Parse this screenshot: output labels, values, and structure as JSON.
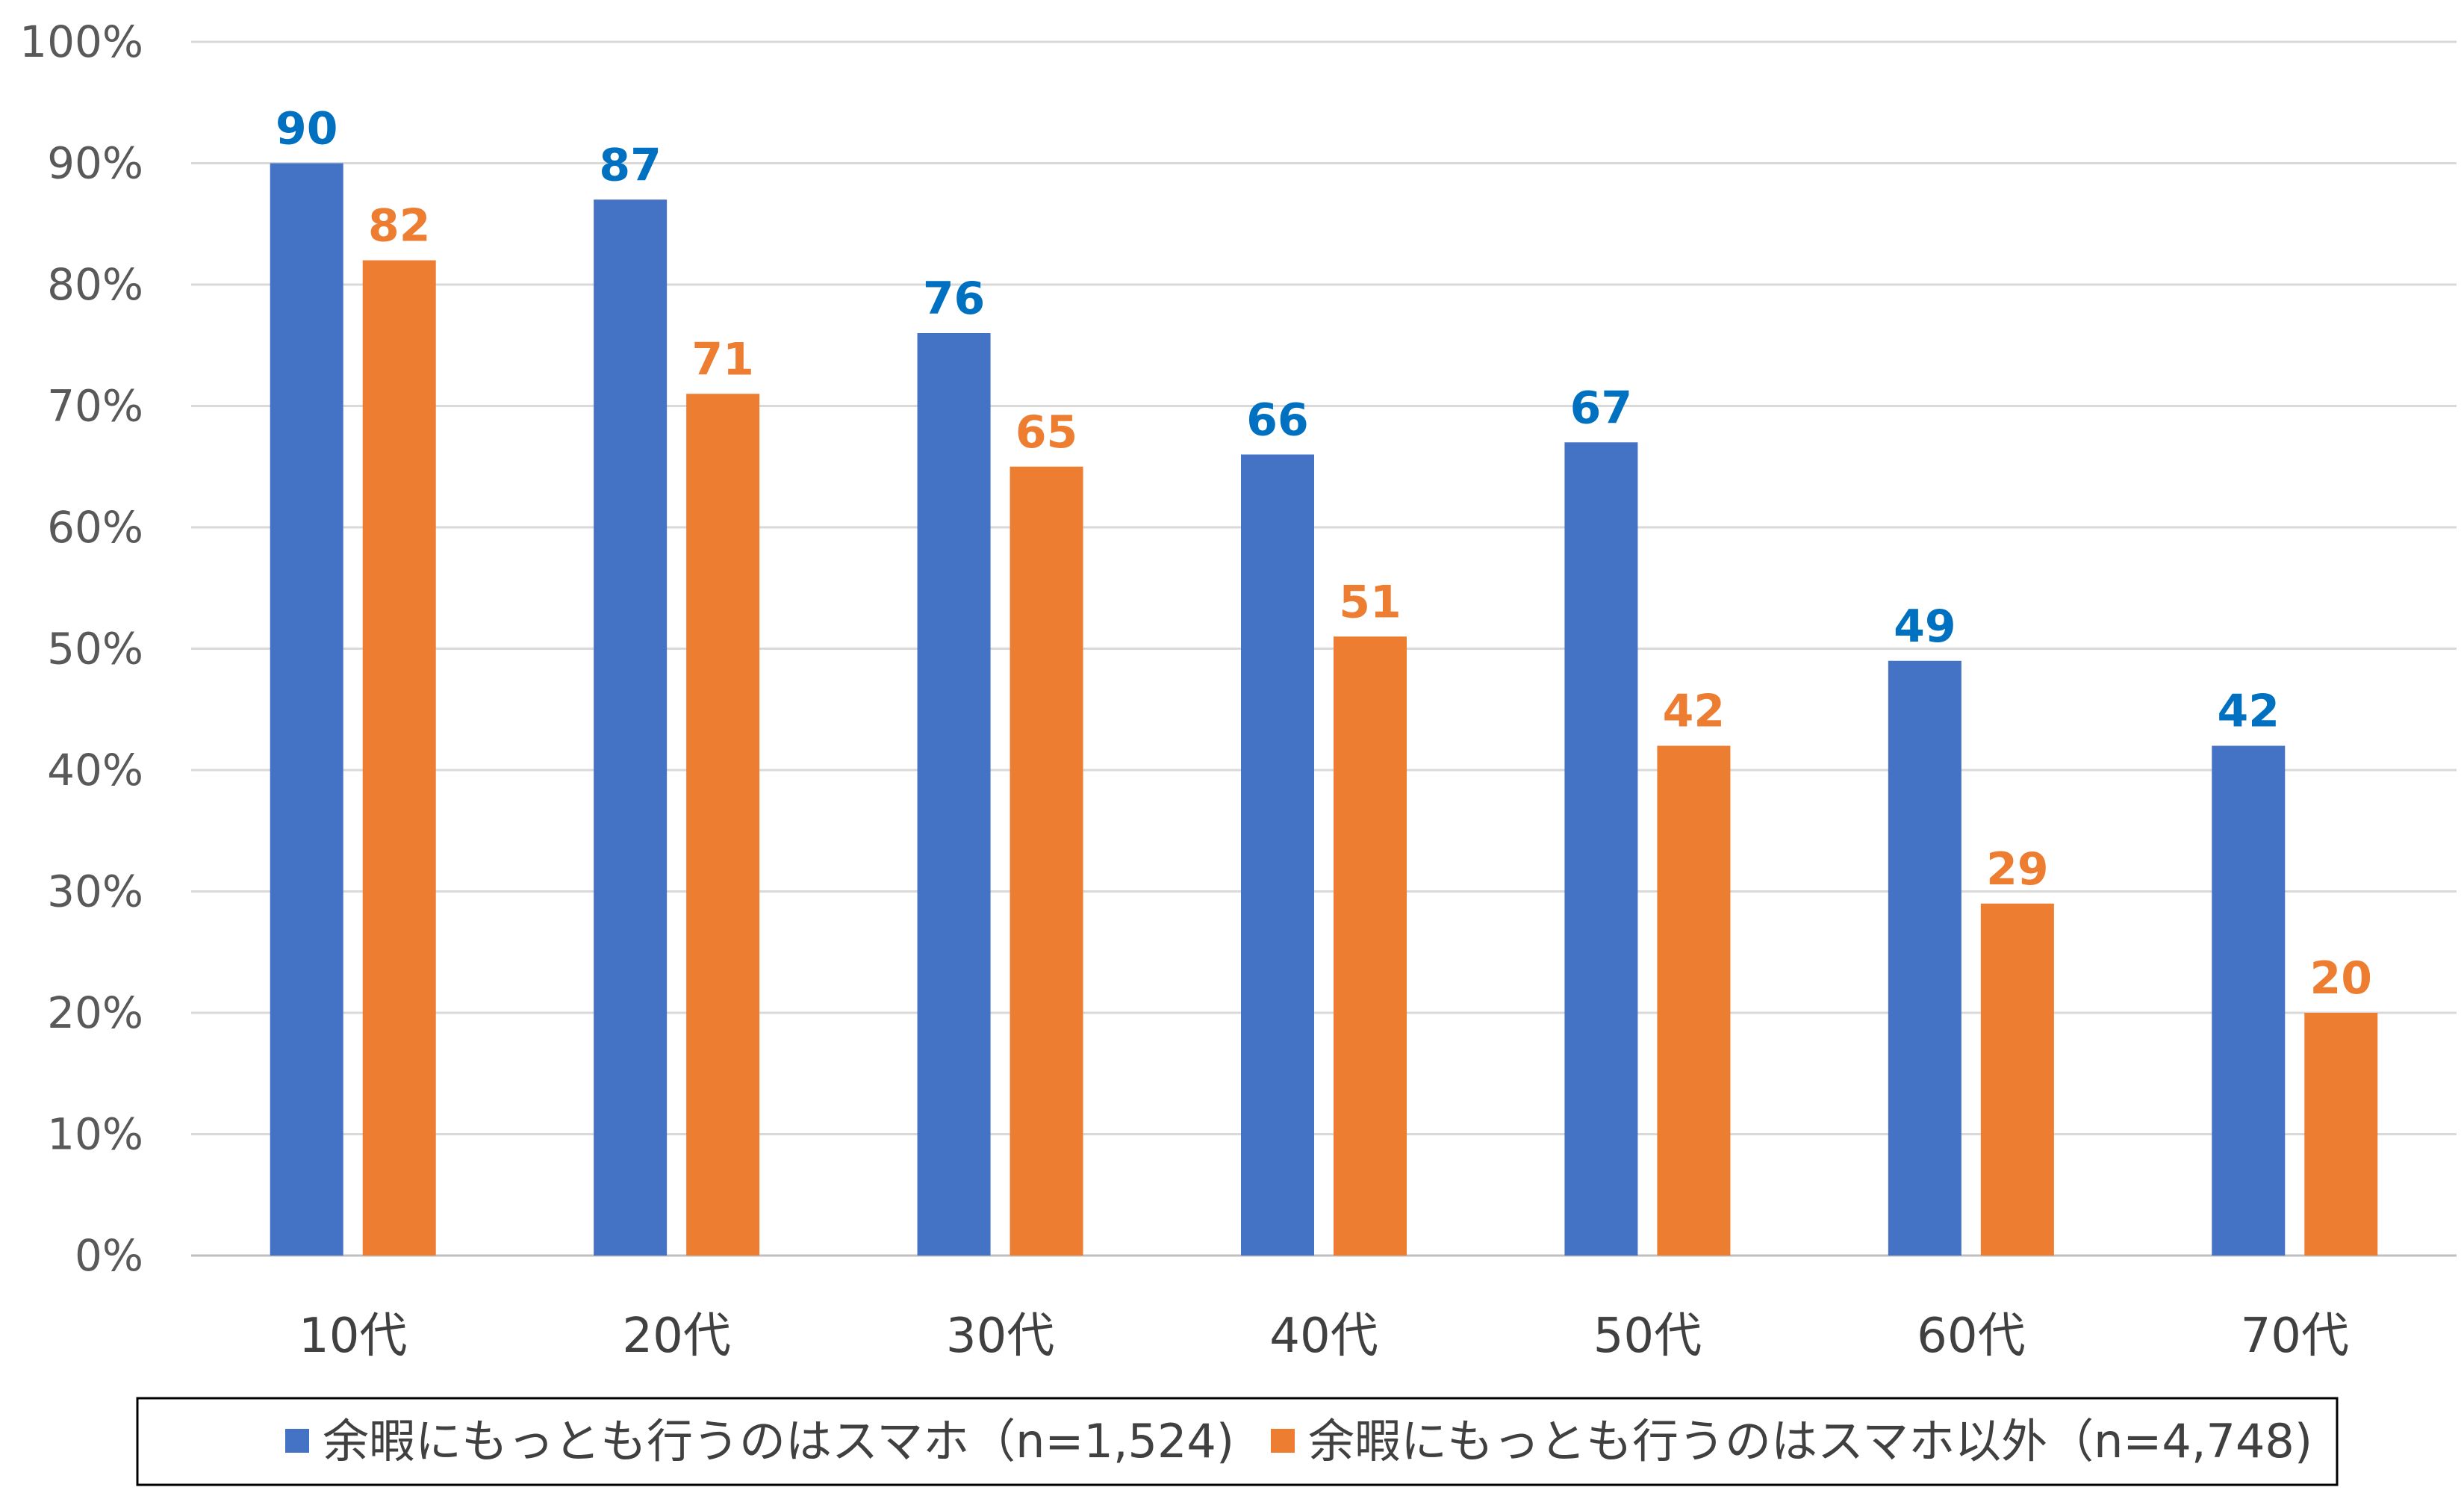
{
  "chart_data": {
    "type": "bar",
    "title": "",
    "xlabel": "",
    "ylabel": "",
    "categories": [
      "10代",
      "20代",
      "30代",
      "40代",
      "50代",
      "60代",
      "70代"
    ],
    "series": [
      {
        "name": "余暇にもっとも行うのはスマホ（n=1,524)",
        "color": "#4472C4",
        "label_color": "#0070C0",
        "values": [
          90,
          87,
          76,
          66,
          67,
          49,
          42
        ]
      },
      {
        "name": "余暇にもっとも行うのはスマホ以外（n=4,748)",
        "color": "#ED7D31",
        "label_color": "#ED7D31",
        "values": [
          82,
          71,
          65,
          51,
          42,
          29,
          20
        ]
      }
    ],
    "ylim": [
      0,
      100
    ],
    "yticks": [
      "0%",
      "10%",
      "20%",
      "30%",
      "40%",
      "50%",
      "60%",
      "70%",
      "80%",
      "90%",
      "100%"
    ],
    "grid": true,
    "legend_position": "bottom"
  }
}
